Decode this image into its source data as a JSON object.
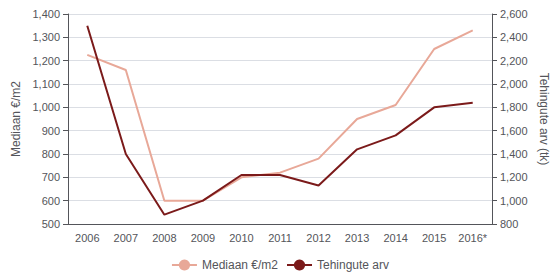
{
  "chart_data": {
    "type": "line",
    "categories": [
      "2006",
      "2007",
      "2008",
      "2009",
      "2010",
      "2011",
      "2012",
      "2013",
      "2014",
      "2015",
      "2016*"
    ],
    "series": [
      {
        "name": "Mediaan €/m2",
        "color": "#e8a898",
        "values": [
          1225,
          1160,
          600,
          600,
          700,
          720,
          780,
          950,
          1010,
          1250,
          1330
        ]
      },
      {
        "name": "Tehingute arv",
        "color": "#7b1a1a",
        "axis": "y2",
        "values": [
          2500,
          1400,
          880,
          1000,
          1220,
          1220,
          1130,
          1440,
          1560,
          1800,
          1840
        ]
      }
    ],
    "ylabel": "Mediaan €/m2",
    "y2label": "Tehingute arv (tk)",
    "ylim": [
      500,
      1400
    ],
    "yticks": [
      500,
      600,
      700,
      800,
      900,
      1000,
      1100,
      1200,
      1300,
      1400
    ],
    "y2lim": [
      800,
      2600
    ],
    "y2ticks": [
      800,
      1000,
      1200,
      1400,
      1600,
      1800,
      2000,
      2200,
      2400,
      2600
    ],
    "grid": true,
    "legend": "bottom"
  }
}
